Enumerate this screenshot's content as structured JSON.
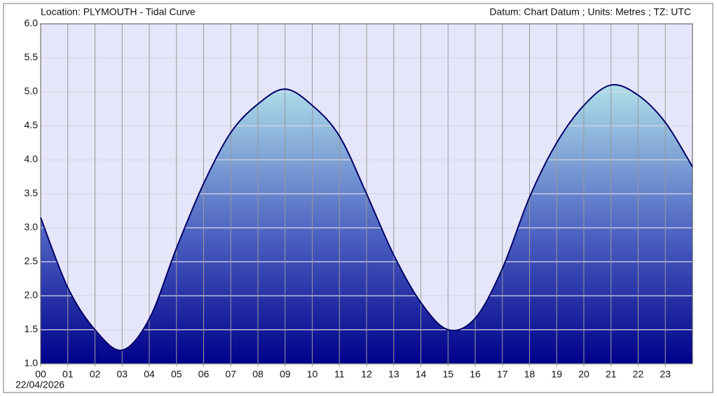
{
  "chart_data": {
    "type": "area",
    "title": "Location: PLYMOUTH - Tidal Curve",
    "subtitle": "Datum: Chart Datum ; Units: Metres ; TZ: UTC",
    "date_label": "22/04/2026",
    "x": [
      0,
      1,
      2,
      3,
      4,
      5,
      6,
      7,
      8,
      9,
      10,
      11,
      12,
      13,
      14,
      15,
      16,
      17,
      18,
      19,
      20,
      21,
      22,
      23,
      24
    ],
    "series": [
      {
        "color": "#000066",
        "values": [
          3.15,
          2.12,
          1.5,
          1.2,
          1.66,
          2.7,
          3.65,
          4.4,
          4.82,
          5.04,
          4.8,
          4.35,
          3.5,
          2.6,
          1.9,
          1.5,
          1.67,
          2.4,
          3.45,
          4.25,
          4.8,
          5.1,
          4.95,
          4.55,
          3.9
        ]
      }
    ],
    "xlim": [
      0,
      24
    ],
    "xticks": [
      {
        "value": 0,
        "label": "00"
      },
      {
        "value": 1,
        "label": "01"
      },
      {
        "value": 2,
        "label": "02"
      },
      {
        "value": 3,
        "label": "03"
      },
      {
        "value": 4,
        "label": "04"
      },
      {
        "value": 5,
        "label": "05"
      },
      {
        "value": 6,
        "label": "06"
      },
      {
        "value": 7,
        "label": "07"
      },
      {
        "value": 8,
        "label": "08"
      },
      {
        "value": 9,
        "label": "09"
      },
      {
        "value": 10,
        "label": "10"
      },
      {
        "value": 11,
        "label": "11"
      },
      {
        "value": 12,
        "label": "12"
      },
      {
        "value": 13,
        "label": "13"
      },
      {
        "value": 14,
        "label": "14"
      },
      {
        "value": 15,
        "label": "15"
      },
      {
        "value": 16,
        "label": "16"
      },
      {
        "value": 17,
        "label": "17"
      },
      {
        "value": 18,
        "label": "18"
      },
      {
        "value": 19,
        "label": "19"
      },
      {
        "value": 20,
        "label": "20"
      },
      {
        "value": 21,
        "label": "21"
      },
      {
        "value": 22,
        "label": "22"
      },
      {
        "value": 23,
        "label": "23"
      }
    ],
    "ylim": [
      1,
      6
    ],
    "yticks": [
      {
        "value": 1,
        "label": "1.0"
      },
      {
        "value": 1.5,
        "label": "1.5"
      },
      {
        "value": 2,
        "label": "2.0"
      },
      {
        "value": 2.5,
        "label": "2.5"
      },
      {
        "value": 3,
        "label": "3.0"
      },
      {
        "value": 3.5,
        "label": "3.5"
      },
      {
        "value": 4,
        "label": "4.0"
      },
      {
        "value": 4.5,
        "label": "4.5"
      },
      {
        "value": 5,
        "label": "5.0"
      },
      {
        "value": 5.5,
        "label": "5.5"
      },
      {
        "value": 6,
        "label": "6.0"
      }
    ],
    "grid": true
  }
}
